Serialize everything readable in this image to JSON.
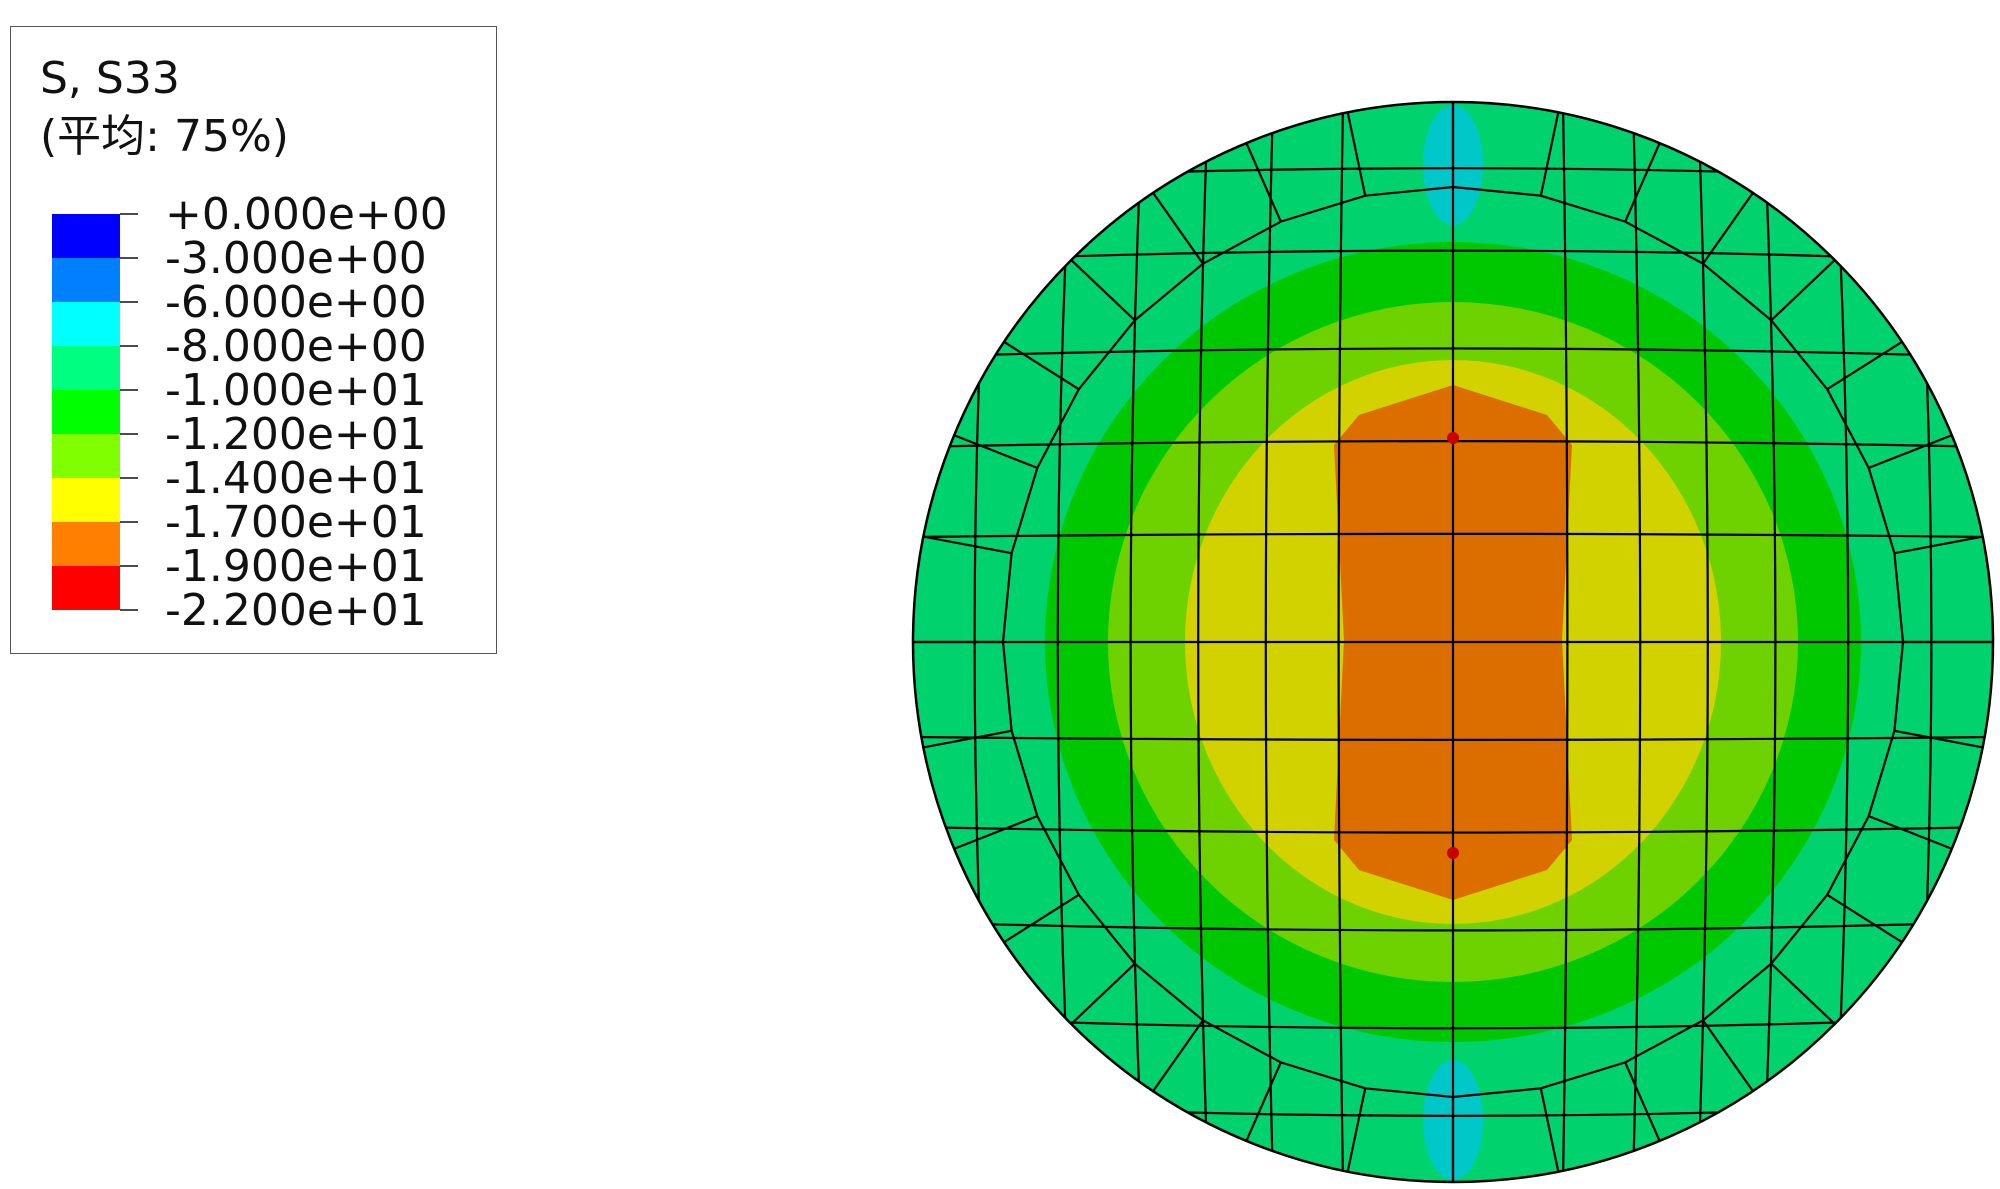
{
  "legend": {
    "title": "S, S33",
    "subtitle": "(平均: 75%)",
    "bands": [
      {
        "color": "#0000ff"
      },
      {
        "color": "#0080ff"
      },
      {
        "color": "#00ffff"
      },
      {
        "color": "#00ff80"
      },
      {
        "color": "#00ff00"
      },
      {
        "color": "#80ff00"
      },
      {
        "color": "#ffff00"
      },
      {
        "color": "#ff8000"
      },
      {
        "color": "#ff0000"
      }
    ],
    "ticks": [
      "+0.000e+00",
      "-3.000e+00",
      "-6.000e+00",
      "-8.000e+00",
      "-1.000e+01",
      "-1.200e+01",
      "-1.400e+01",
      "-1.700e+01",
      "-1.900e+01",
      "-2.200e+01"
    ]
  },
  "contour": {
    "colors": {
      "outer": "#00d26e",
      "ring": "#00c800",
      "mid": "#6ed200",
      "inner": "#d2d200",
      "core": "#dc6e00",
      "edge": "#00c8c8",
      "mesh": "#000000",
      "node": "#c80000"
    }
  }
}
